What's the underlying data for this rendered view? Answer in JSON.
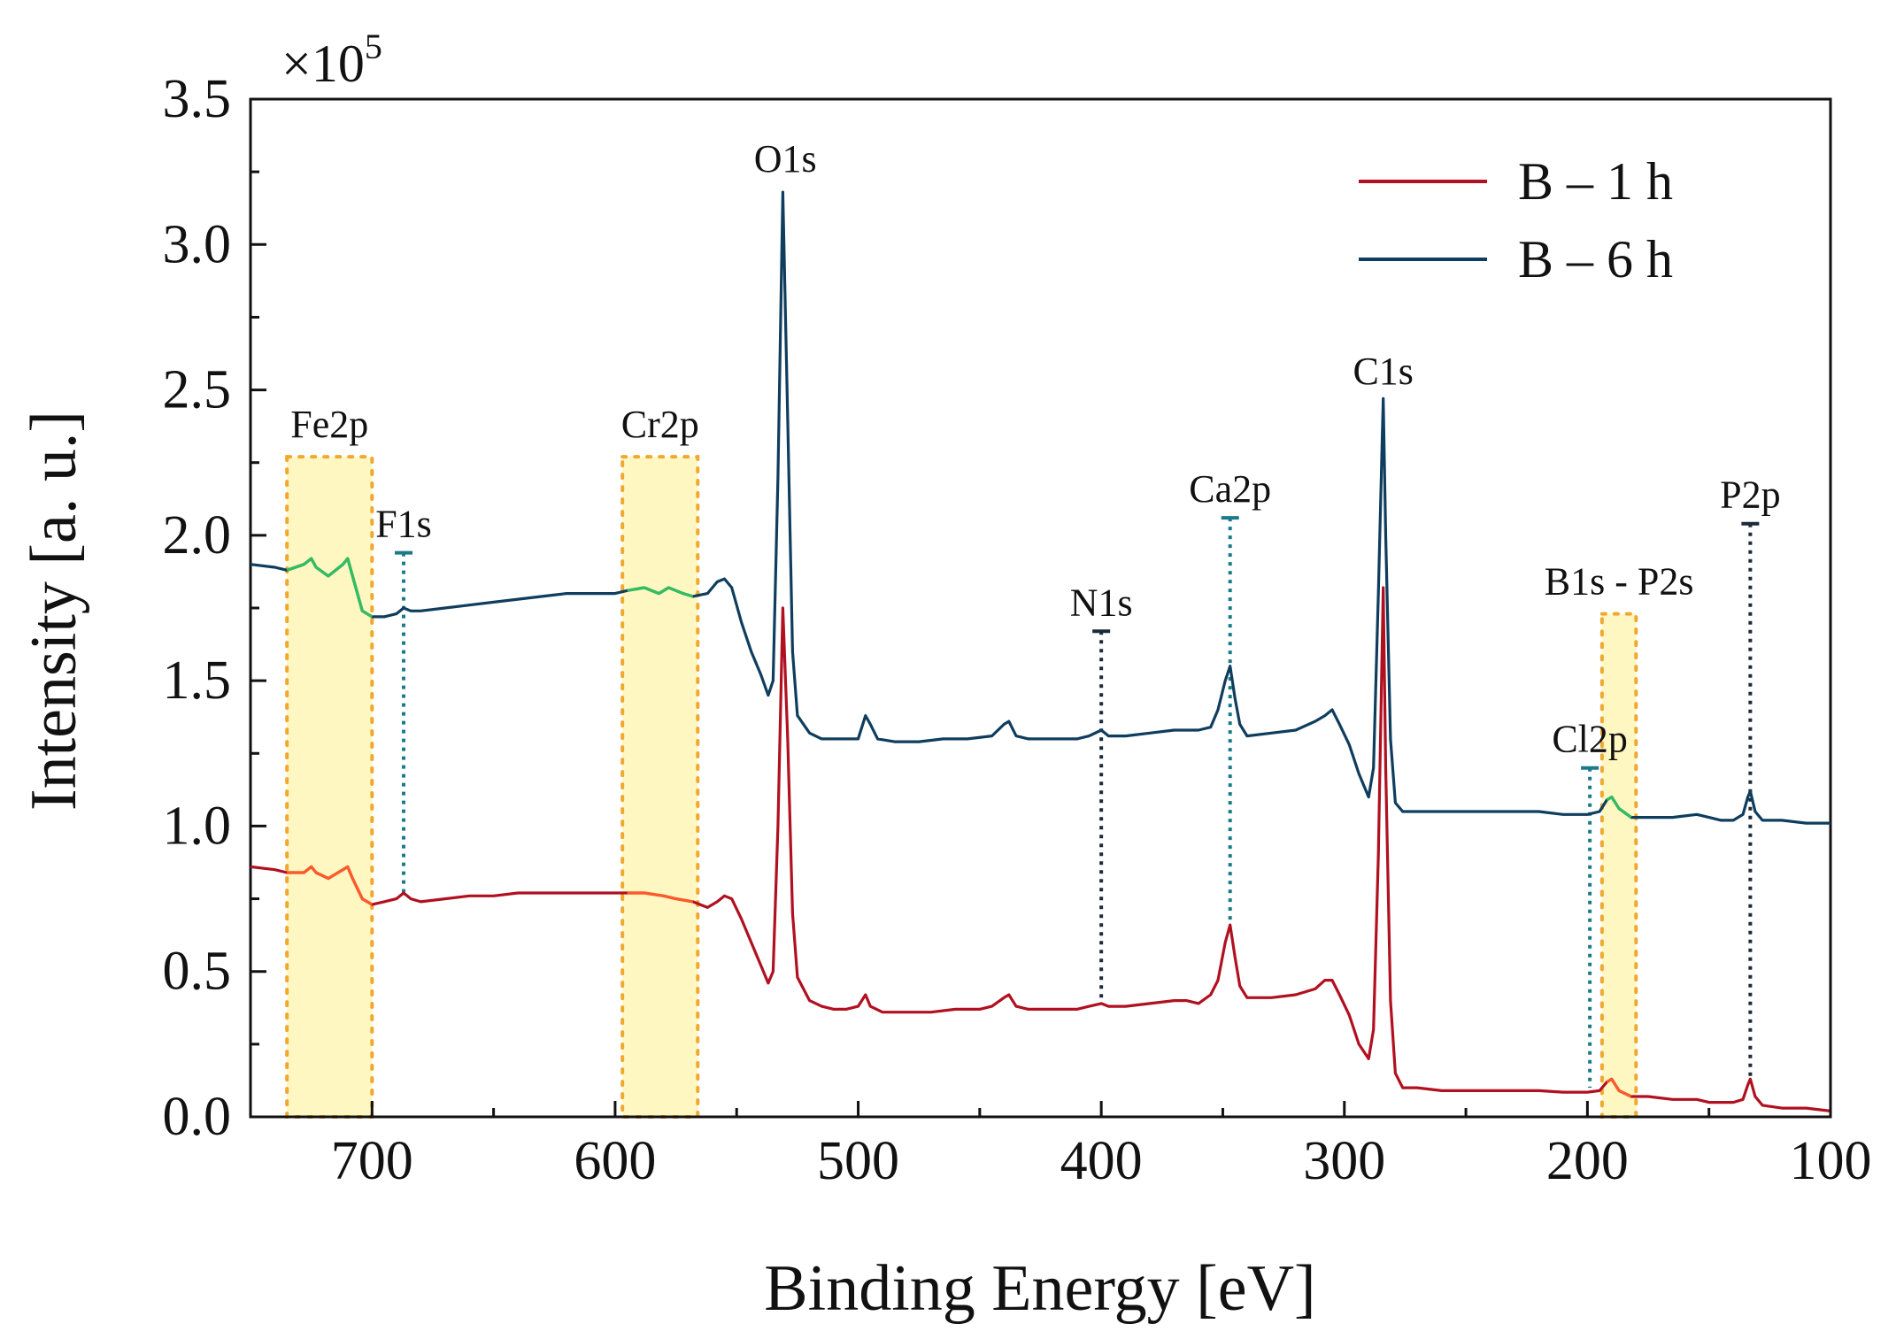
{
  "chart_data": {
    "type": "line",
    "title": "",
    "xlabel": "Binding Energy [eV]",
    "ylabel": "Intensity [a. u.]",
    "y_multiplier_prefix": "×10",
    "y_multiplier_exponent": "5",
    "xlim": [
      750,
      100
    ],
    "ylim": [
      0,
      3.5
    ],
    "x_reversed": true,
    "xticks": [
      700,
      600,
      500,
      400,
      300,
      200,
      100
    ],
    "yticks": [
      0.0,
      0.5,
      1.0,
      1.5,
      2.0,
      2.5,
      3.0,
      3.5
    ],
    "ytick_labels": [
      "0.0",
      "0.5",
      "1.0",
      "1.5",
      "2.0",
      "2.5",
      "3.0",
      "3.5"
    ],
    "legend_position": "top-right",
    "colors": {
      "b1h": "#b01020",
      "b6h": "#0f3d5e",
      "highlight_fill": "#fff7c2",
      "highlight_border": "#f0a830",
      "marker_dark": "#1b2a3a",
      "marker_teal": "#1a7a8a",
      "region_green": "#2fbf5f",
      "region_orange": "#ff5a2a"
    },
    "series": [
      {
        "name": "B – 1 h",
        "color": "#b01020",
        "points": [
          [
            750,
            0.86
          ],
          [
            740,
            0.85
          ],
          [
            735,
            0.84
          ],
          [
            728,
            0.84
          ],
          [
            725,
            0.86
          ],
          [
            723,
            0.84
          ],
          [
            718,
            0.82
          ],
          [
            712,
            0.85
          ],
          [
            710,
            0.86
          ],
          [
            708,
            0.82
          ],
          [
            704,
            0.75
          ],
          [
            700,
            0.73
          ],
          [
            695,
            0.74
          ],
          [
            690,
            0.75
          ],
          [
            687,
            0.77
          ],
          [
            684,
            0.75
          ],
          [
            680,
            0.74
          ],
          [
            670,
            0.75
          ],
          [
            660,
            0.76
          ],
          [
            650,
            0.76
          ],
          [
            640,
            0.77
          ],
          [
            630,
            0.77
          ],
          [
            620,
            0.77
          ],
          [
            610,
            0.77
          ],
          [
            600,
            0.77
          ],
          [
            595,
            0.77
          ],
          [
            588,
            0.77
          ],
          [
            580,
            0.76
          ],
          [
            575,
            0.75
          ],
          [
            568,
            0.74
          ],
          [
            562,
            0.72
          ],
          [
            558,
            0.74
          ],
          [
            555,
            0.76
          ],
          [
            552,
            0.75
          ],
          [
            548,
            0.68
          ],
          [
            544,
            0.6
          ],
          [
            540,
            0.52
          ],
          [
            537,
            0.46
          ],
          [
            535,
            0.5
          ],
          [
            533,
            1.0
          ],
          [
            531,
            1.75
          ],
          [
            529,
            1.3
          ],
          [
            527,
            0.7
          ],
          [
            525,
            0.48
          ],
          [
            520,
            0.4
          ],
          [
            515,
            0.38
          ],
          [
            510,
            0.37
          ],
          [
            505,
            0.37
          ],
          [
            500,
            0.38
          ],
          [
            497,
            0.42
          ],
          [
            495,
            0.38
          ],
          [
            490,
            0.36
          ],
          [
            480,
            0.36
          ],
          [
            470,
            0.36
          ],
          [
            460,
            0.37
          ],
          [
            450,
            0.37
          ],
          [
            445,
            0.38
          ],
          [
            440,
            0.41
          ],
          [
            438,
            0.42
          ],
          [
            435,
            0.38
          ],
          [
            430,
            0.37
          ],
          [
            420,
            0.37
          ],
          [
            410,
            0.37
          ],
          [
            405,
            0.38
          ],
          [
            400,
            0.39
          ],
          [
            397,
            0.38
          ],
          [
            390,
            0.38
          ],
          [
            380,
            0.39
          ],
          [
            370,
            0.4
          ],
          [
            365,
            0.4
          ],
          [
            360,
            0.39
          ],
          [
            355,
            0.42
          ],
          [
            352,
            0.47
          ],
          [
            349,
            0.6
          ],
          [
            347,
            0.66
          ],
          [
            345,
            0.55
          ],
          [
            343,
            0.45
          ],
          [
            340,
            0.41
          ],
          [
            330,
            0.41
          ],
          [
            320,
            0.42
          ],
          [
            312,
            0.44
          ],
          [
            308,
            0.47
          ],
          [
            305,
            0.47
          ],
          [
            302,
            0.42
          ],
          [
            298,
            0.35
          ],
          [
            294,
            0.25
          ],
          [
            290,
            0.2
          ],
          [
            288,
            0.3
          ],
          [
            286,
            0.9
          ],
          [
            284,
            1.82
          ],
          [
            283,
            1.2
          ],
          [
            281,
            0.4
          ],
          [
            279,
            0.15
          ],
          [
            276,
            0.1
          ],
          [
            270,
            0.1
          ],
          [
            260,
            0.09
          ],
          [
            250,
            0.09
          ],
          [
            240,
            0.09
          ],
          [
            230,
            0.09
          ],
          [
            220,
            0.09
          ],
          [
            210,
            0.085
          ],
          [
            200,
            0.085
          ],
          [
            195,
            0.09
          ],
          [
            192,
            0.12
          ],
          [
            190,
            0.13
          ],
          [
            187,
            0.09
          ],
          [
            182,
            0.07
          ],
          [
            175,
            0.07
          ],
          [
            165,
            0.06
          ],
          [
            155,
            0.06
          ],
          [
            150,
            0.05
          ],
          [
            145,
            0.05
          ],
          [
            140,
            0.05
          ],
          [
            136,
            0.06
          ],
          [
            134,
            0.11
          ],
          [
            133,
            0.13
          ],
          [
            131,
            0.07
          ],
          [
            128,
            0.04
          ],
          [
            120,
            0.03
          ],
          [
            110,
            0.03
          ],
          [
            100,
            0.02
          ]
        ]
      },
      {
        "name": "B – 6 h",
        "color": "#0f3d5e",
        "points": [
          [
            750,
            1.9
          ],
          [
            740,
            1.89
          ],
          [
            735,
            1.88
          ],
          [
            728,
            1.9
          ],
          [
            725,
            1.92
          ],
          [
            723,
            1.89
          ],
          [
            718,
            1.86
          ],
          [
            712,
            1.9
          ],
          [
            710,
            1.92
          ],
          [
            708,
            1.86
          ],
          [
            704,
            1.74
          ],
          [
            700,
            1.72
          ],
          [
            695,
            1.72
          ],
          [
            690,
            1.73
          ],
          [
            687,
            1.75
          ],
          [
            684,
            1.74
          ],
          [
            680,
            1.74
          ],
          [
            670,
            1.75
          ],
          [
            660,
            1.76
          ],
          [
            650,
            1.77
          ],
          [
            640,
            1.78
          ],
          [
            630,
            1.79
          ],
          [
            620,
            1.8
          ],
          [
            610,
            1.8
          ],
          [
            600,
            1.8
          ],
          [
            595,
            1.81
          ],
          [
            588,
            1.82
          ],
          [
            582,
            1.8
          ],
          [
            578,
            1.82
          ],
          [
            572,
            1.8
          ],
          [
            568,
            1.79
          ],
          [
            562,
            1.8
          ],
          [
            558,
            1.84
          ],
          [
            555,
            1.85
          ],
          [
            552,
            1.82
          ],
          [
            548,
            1.7
          ],
          [
            544,
            1.6
          ],
          [
            540,
            1.52
          ],
          [
            537,
            1.45
          ],
          [
            535,
            1.5
          ],
          [
            533,
            2.2
          ],
          [
            531,
            3.18
          ],
          [
            529,
            2.4
          ],
          [
            527,
            1.6
          ],
          [
            525,
            1.38
          ],
          [
            520,
            1.32
          ],
          [
            515,
            1.3
          ],
          [
            510,
            1.3
          ],
          [
            505,
            1.3
          ],
          [
            500,
            1.3
          ],
          [
            497,
            1.38
          ],
          [
            495,
            1.35
          ],
          [
            492,
            1.3
          ],
          [
            485,
            1.29
          ],
          [
            475,
            1.29
          ],
          [
            465,
            1.3
          ],
          [
            455,
            1.3
          ],
          [
            445,
            1.31
          ],
          [
            440,
            1.35
          ],
          [
            438,
            1.36
          ],
          [
            435,
            1.31
          ],
          [
            430,
            1.3
          ],
          [
            420,
            1.3
          ],
          [
            410,
            1.3
          ],
          [
            405,
            1.31
          ],
          [
            400,
            1.33
          ],
          [
            397,
            1.31
          ],
          [
            390,
            1.31
          ],
          [
            380,
            1.32
          ],
          [
            370,
            1.33
          ],
          [
            360,
            1.33
          ],
          [
            355,
            1.34
          ],
          [
            352,
            1.4
          ],
          [
            349,
            1.5
          ],
          [
            347,
            1.55
          ],
          [
            345,
            1.44
          ],
          [
            343,
            1.35
          ],
          [
            340,
            1.31
          ],
          [
            330,
            1.32
          ],
          [
            320,
            1.33
          ],
          [
            312,
            1.36
          ],
          [
            308,
            1.38
          ],
          [
            305,
            1.4
          ],
          [
            302,
            1.35
          ],
          [
            298,
            1.28
          ],
          [
            294,
            1.18
          ],
          [
            290,
            1.1
          ],
          [
            288,
            1.2
          ],
          [
            286,
            1.8
          ],
          [
            284,
            2.47
          ],
          [
            283,
            2.0
          ],
          [
            281,
            1.3
          ],
          [
            279,
            1.08
          ],
          [
            276,
            1.05
          ],
          [
            270,
            1.05
          ],
          [
            260,
            1.05
          ],
          [
            250,
            1.05
          ],
          [
            240,
            1.05
          ],
          [
            230,
            1.05
          ],
          [
            220,
            1.05
          ],
          [
            210,
            1.04
          ],
          [
            200,
            1.04
          ],
          [
            195,
            1.05
          ],
          [
            192,
            1.09
          ],
          [
            190,
            1.1
          ],
          [
            187,
            1.06
          ],
          [
            182,
            1.03
          ],
          [
            175,
            1.03
          ],
          [
            165,
            1.03
          ],
          [
            155,
            1.04
          ],
          [
            150,
            1.03
          ],
          [
            145,
            1.02
          ],
          [
            140,
            1.02
          ],
          [
            136,
            1.04
          ],
          [
            134,
            1.1
          ],
          [
            133,
            1.12
          ],
          [
            131,
            1.05
          ],
          [
            128,
            1.02
          ],
          [
            120,
            1.02
          ],
          [
            110,
            1.01
          ],
          [
            100,
            1.01
          ]
        ]
      }
    ],
    "highlight_regions": [
      {
        "label": "Fe2p",
        "x_from": 735,
        "x_to": 700,
        "y_top": 2.27
      },
      {
        "label": "Cr2p",
        "x_from": 597,
        "x_to": 566,
        "y_top": 2.27
      },
      {
        "label": "B1s - P2s",
        "x_from": 194,
        "x_to": 180,
        "y_top": 1.73
      }
    ],
    "peak_markers": [
      {
        "label": "F1s",
        "x": 687,
        "y_top": 1.94,
        "y_bottom": 0.77,
        "color": "#1a7a8a"
      },
      {
        "label": "N1s",
        "x": 400,
        "y_top": 1.67,
        "y_bottom": 0.39,
        "color": "#1b2a3a"
      },
      {
        "label": "Ca2p",
        "x": 347,
        "y_top": 2.06,
        "y_bottom": 0.66,
        "color": "#1a7a8a"
      },
      {
        "label": "Cl2p",
        "x": 199,
        "y_top": 1.2,
        "y_bottom": 0.1,
        "color": "#1a7a8a"
      },
      {
        "label": "P2p",
        "x": 133,
        "y_top": 2.04,
        "y_bottom": 0.13,
        "color": "#1b2a3a"
      }
    ],
    "peak_text_labels": [
      {
        "label": "O1s",
        "x": 530,
        "y": 3.25
      },
      {
        "label": "C1s",
        "x": 284,
        "y": 2.52
      }
    ]
  }
}
